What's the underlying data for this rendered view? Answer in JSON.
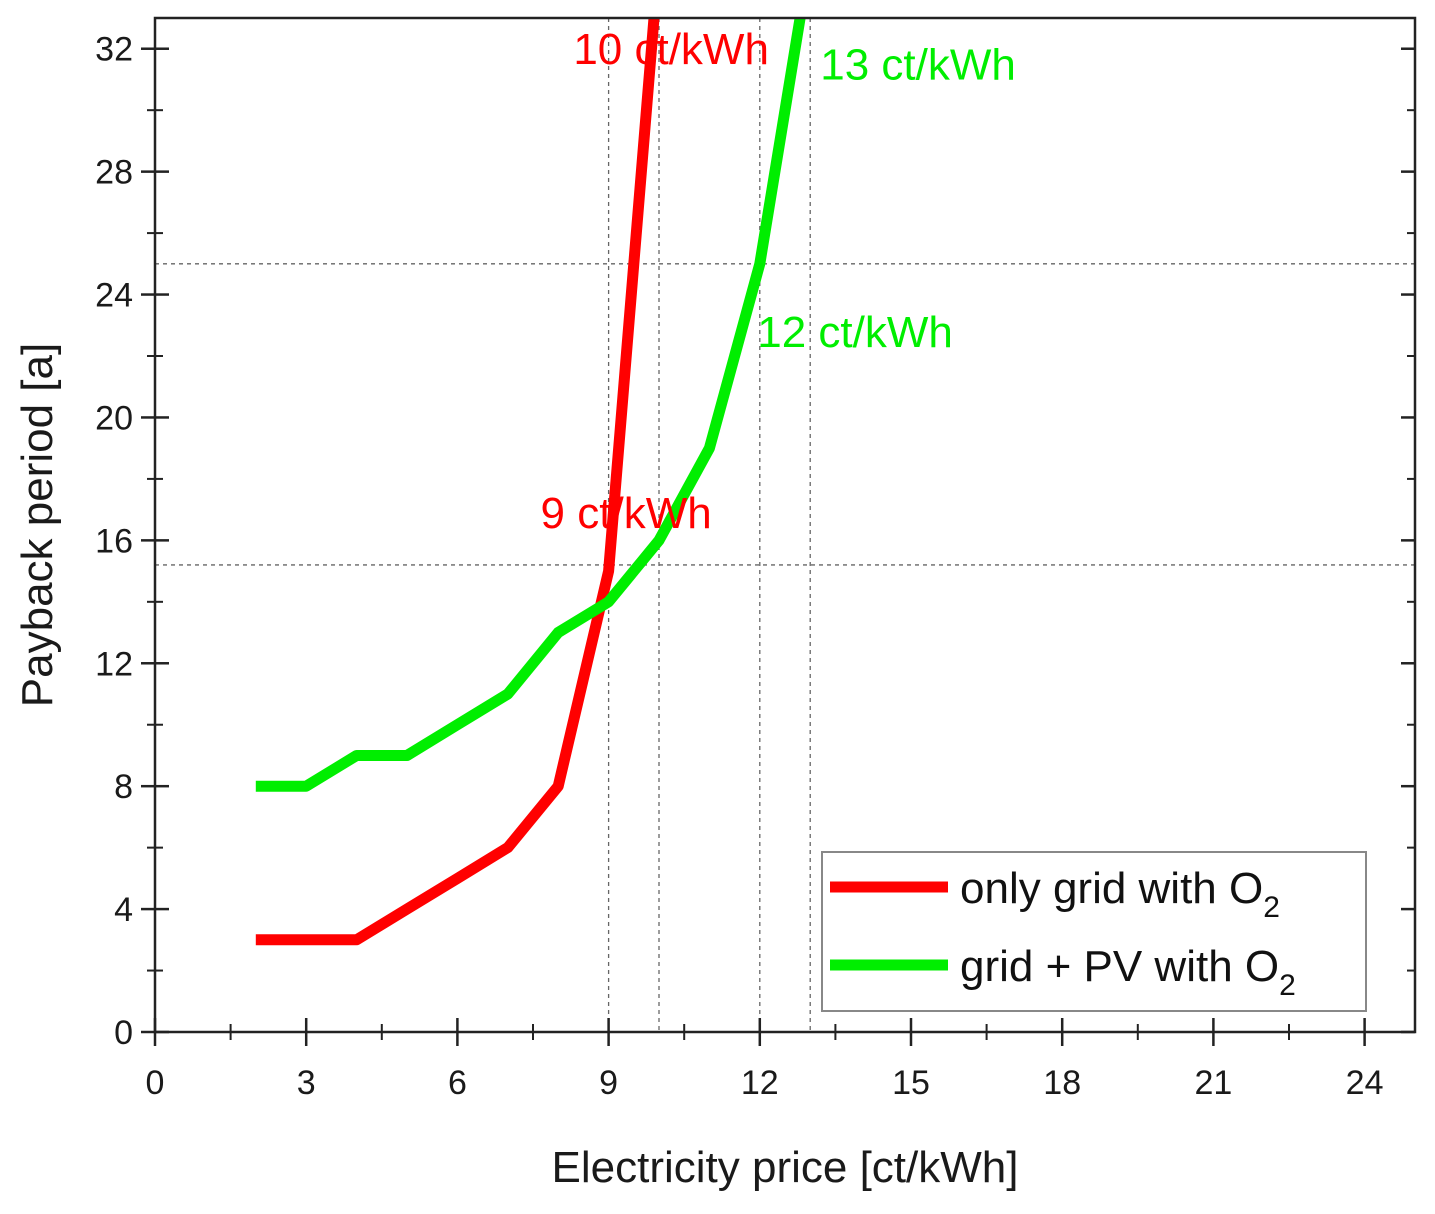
{
  "chart_data": {
    "type": "line",
    "title": "",
    "xlabel": "Electricity price [ct/kWh]",
    "ylabel": "Payback period [a]",
    "xlim": [
      0,
      25
    ],
    "ylim": [
      0,
      33
    ],
    "x_ticks": [
      0,
      3,
      6,
      9,
      12,
      15,
      18,
      21,
      24
    ],
    "y_ticks": [
      0,
      4,
      8,
      12,
      16,
      20,
      24,
      28,
      32
    ],
    "grid": false,
    "legend_position": "bottom-right",
    "series": [
      {
        "name": "only grid with O",
        "subscript": "2",
        "color": "#ff0000",
        "x": [
          2,
          3,
          4,
          5,
          6,
          7,
          8,
          9,
          9.5,
          9.9
        ],
        "y": [
          3,
          3,
          3,
          4,
          5,
          6,
          8,
          15,
          25,
          33
        ]
      },
      {
        "name": "grid + PV with O",
        "subscript": "2",
        "color": "#00ee00",
        "x": [
          2,
          3,
          4,
          5,
          6,
          7,
          8,
          9,
          10,
          11,
          12,
          12.5,
          12.8
        ],
        "y": [
          8,
          8,
          9,
          9,
          10,
          11,
          13,
          14,
          16,
          19,
          25,
          30,
          33
        ]
      }
    ],
    "reference_lines": {
      "vertical": [
        9,
        10,
        12,
        13
      ],
      "horizontal": [
        15.2,
        25
      ]
    },
    "annotations": [
      {
        "text": "10 ct/kWh",
        "x": 8.3,
        "y": 31.5,
        "color": "#ff0000"
      },
      {
        "text": "13 ct/kWh",
        "x": 13.2,
        "y": 31.0,
        "color": "#00ee00"
      },
      {
        "text": "12 ct/kWh",
        "x": 11.95,
        "y": 22.3,
        "color": "#00ee00"
      },
      {
        "text": "9 ct/kWh",
        "x": 7.65,
        "y": 16.4,
        "color": "#ff0000"
      }
    ]
  }
}
